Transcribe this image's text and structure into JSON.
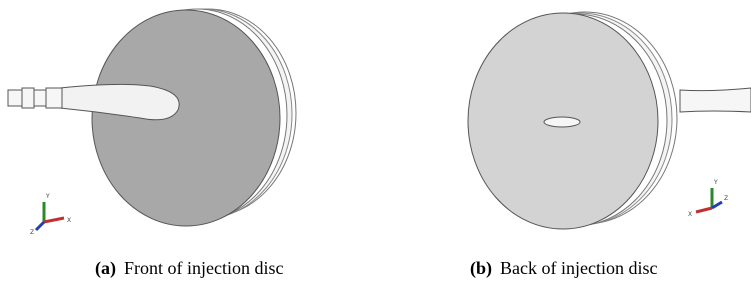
{
  "figure": {
    "subfigures": [
      {
        "label": "(a)",
        "caption": "Front of injection disc",
        "triad": {
          "y": "Y",
          "x": "X",
          "z": "Z"
        }
      },
      {
        "label": "(b)",
        "caption": "Back of injection disc",
        "triad": {
          "y": "Y",
          "x": "X",
          "z": "Z"
        }
      }
    ]
  }
}
